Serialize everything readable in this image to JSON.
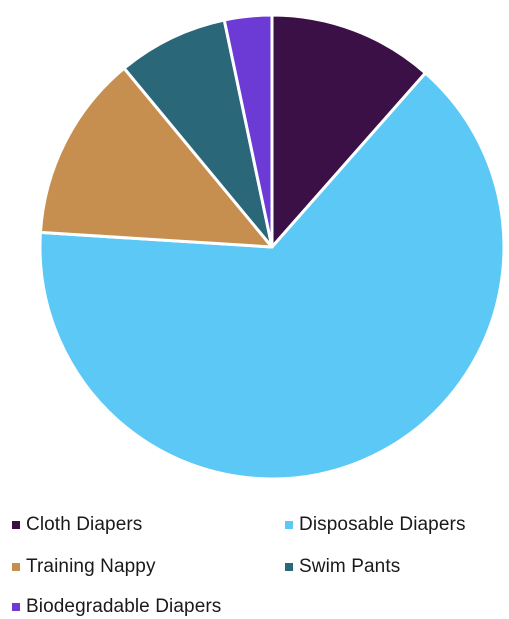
{
  "chart_data": {
    "type": "pie",
    "title": "",
    "legend_position": "bottom",
    "start_angle_deg": 0,
    "direction": "clockwise",
    "slices": [
      {
        "label": "Cloth Diapers",
        "value": 11.5,
        "color": "#3a1046"
      },
      {
        "label": "Disposable Diapers",
        "value": 64.5,
        "color": "#5bc8f5"
      },
      {
        "label": "Training Nappy",
        "value": 13.0,
        "color": "#c68f4f"
      },
      {
        "label": "Swim Pants",
        "value": 7.7,
        "color": "#2a6778"
      },
      {
        "label": "Biodegradable Diapers",
        "value": 3.3,
        "color": "#6c3bd6"
      }
    ]
  }
}
